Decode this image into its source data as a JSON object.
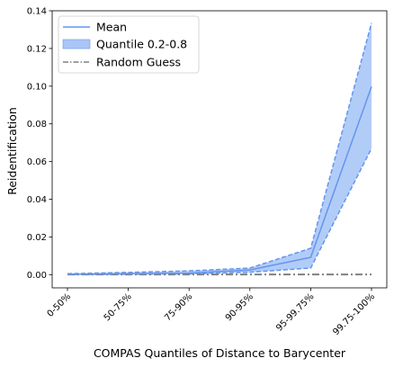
{
  "chart_data": {
    "type": "line",
    "xlabel": "COMPAS Quantiles of Distance to Barycenter",
    "ylabel": "Reidentification",
    "categories": [
      "0-50%",
      "50-75%",
      "75-90%",
      "90-95%",
      "95-99.75%",
      "99.75-100%"
    ],
    "ylim": [
      -0.007,
      0.14
    ],
    "yticks": [
      0.0,
      0.02,
      0.04,
      0.06,
      0.08,
      0.1,
      0.12,
      0.14
    ],
    "ytick_labels": [
      "0.00",
      "0.02",
      "0.04",
      "0.06",
      "0.08",
      "0.10",
      "0.12",
      "0.14"
    ],
    "series": [
      {
        "name": "Mean",
        "kind": "line",
        "color": "#6495ed",
        "values": [
          0.0002,
          0.0005,
          0.0008,
          0.0025,
          0.0092,
          0.0998
        ]
      },
      {
        "name": "Quantile 0.2-0.8",
        "kind": "band",
        "color": "#6495ed",
        "fill": "#aac6f7",
        "lower": [
          0.0,
          0.0002,
          0.0004,
          0.0013,
          0.0035,
          0.067
        ],
        "upper": [
          0.0005,
          0.0012,
          0.002,
          0.0035,
          0.014,
          0.1335
        ]
      },
      {
        "name": "Random Guess",
        "kind": "dashdot",
        "color": "#808080",
        "values": [
          0.0001,
          0.0001,
          0.0001,
          0.0001,
          0.0001,
          0.0001
        ]
      }
    ],
    "legend": {
      "position": "top-left",
      "entries": [
        "Mean",
        "Quantile 0.2-0.8",
        "Random Guess"
      ]
    },
    "grid": false
  }
}
